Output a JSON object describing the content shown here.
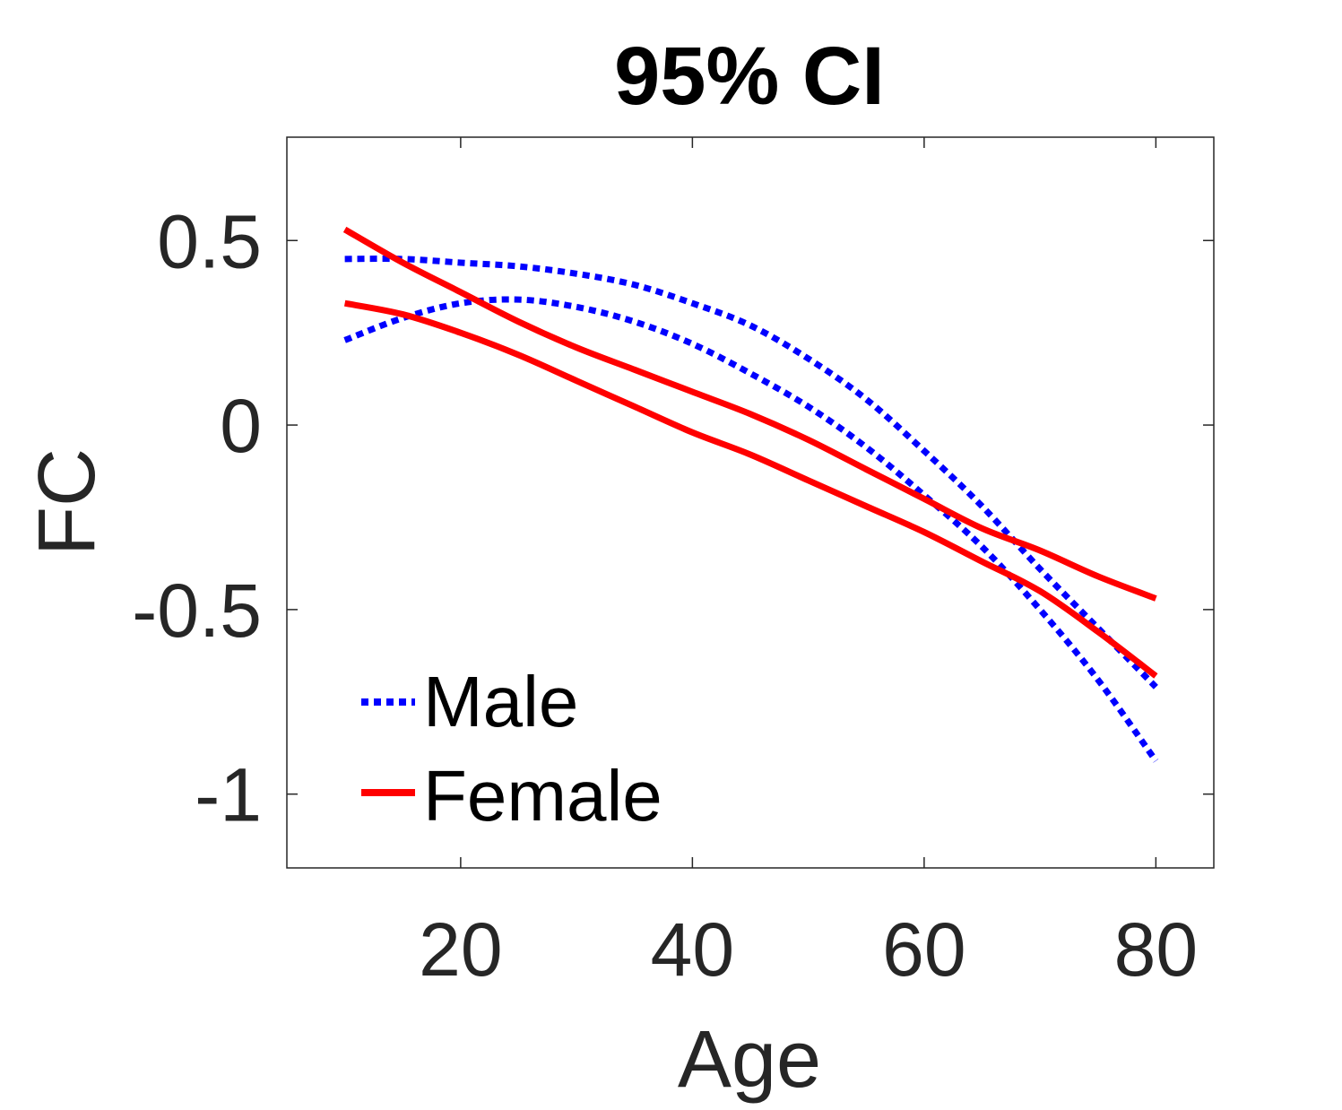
{
  "chart_data": {
    "type": "line",
    "title": "95% CI",
    "xlabel": "Age",
    "ylabel": "FC",
    "xlim": [
      5,
      85
    ],
    "ylim": [
      -1.2,
      0.78
    ],
    "xticks": [
      20,
      40,
      60,
      80
    ],
    "xtick_labels": [
      "20",
      "40",
      "60",
      "80"
    ],
    "yticks": [
      0.5,
      0,
      -0.5,
      -1
    ],
    "ytick_labels": [
      "0.5",
      "0",
      "-0.5",
      "-1"
    ],
    "grid": false,
    "legend_position": "bottom-left",
    "series": [
      {
        "name": "Male",
        "color": "#0000ff",
        "style": "dotted",
        "bands": [
          {
            "x": [
              10,
              15,
              20,
              25,
              30,
              35,
              40,
              45,
              50,
              55,
              60,
              65,
              70,
              75,
              80
            ],
            "y": [
              0.45,
              0.45,
              0.44,
              0.43,
              0.41,
              0.38,
              0.33,
              0.27,
              0.18,
              0.07,
              -0.07,
              -0.22,
              -0.39,
              -0.55,
              -0.71
            ]
          },
          {
            "x": [
              10,
              15,
              20,
              25,
              30,
              35,
              40,
              45,
              50,
              55,
              60,
              65,
              70,
              75,
              80
            ],
            "y": [
              0.23,
              0.29,
              0.33,
              0.34,
              0.32,
              0.28,
              0.22,
              0.14,
              0.05,
              -0.06,
              -0.19,
              -0.33,
              -0.5,
              -0.69,
              -0.91
            ]
          }
        ]
      },
      {
        "name": "Female",
        "color": "#ff0000",
        "style": "solid",
        "bands": [
          {
            "x": [
              10,
              15,
              20,
              25,
              30,
              35,
              40,
              45,
              50,
              55,
              60,
              65,
              70,
              75,
              80
            ],
            "y": [
              0.53,
              0.44,
              0.36,
              0.28,
              0.21,
              0.15,
              0.09,
              0.03,
              -0.04,
              -0.12,
              -0.2,
              -0.28,
              -0.34,
              -0.41,
              -0.47
            ]
          },
          {
            "x": [
              10,
              15,
              20,
              25,
              30,
              35,
              40,
              45,
              50,
              55,
              60,
              65,
              70,
              75,
              80
            ],
            "y": [
              0.33,
              0.3,
              0.25,
              0.19,
              0.12,
              0.05,
              -0.02,
              -0.08,
              -0.15,
              -0.22,
              -0.29,
              -0.37,
              -0.45,
              -0.56,
              -0.68
            ]
          }
        ]
      }
    ]
  }
}
